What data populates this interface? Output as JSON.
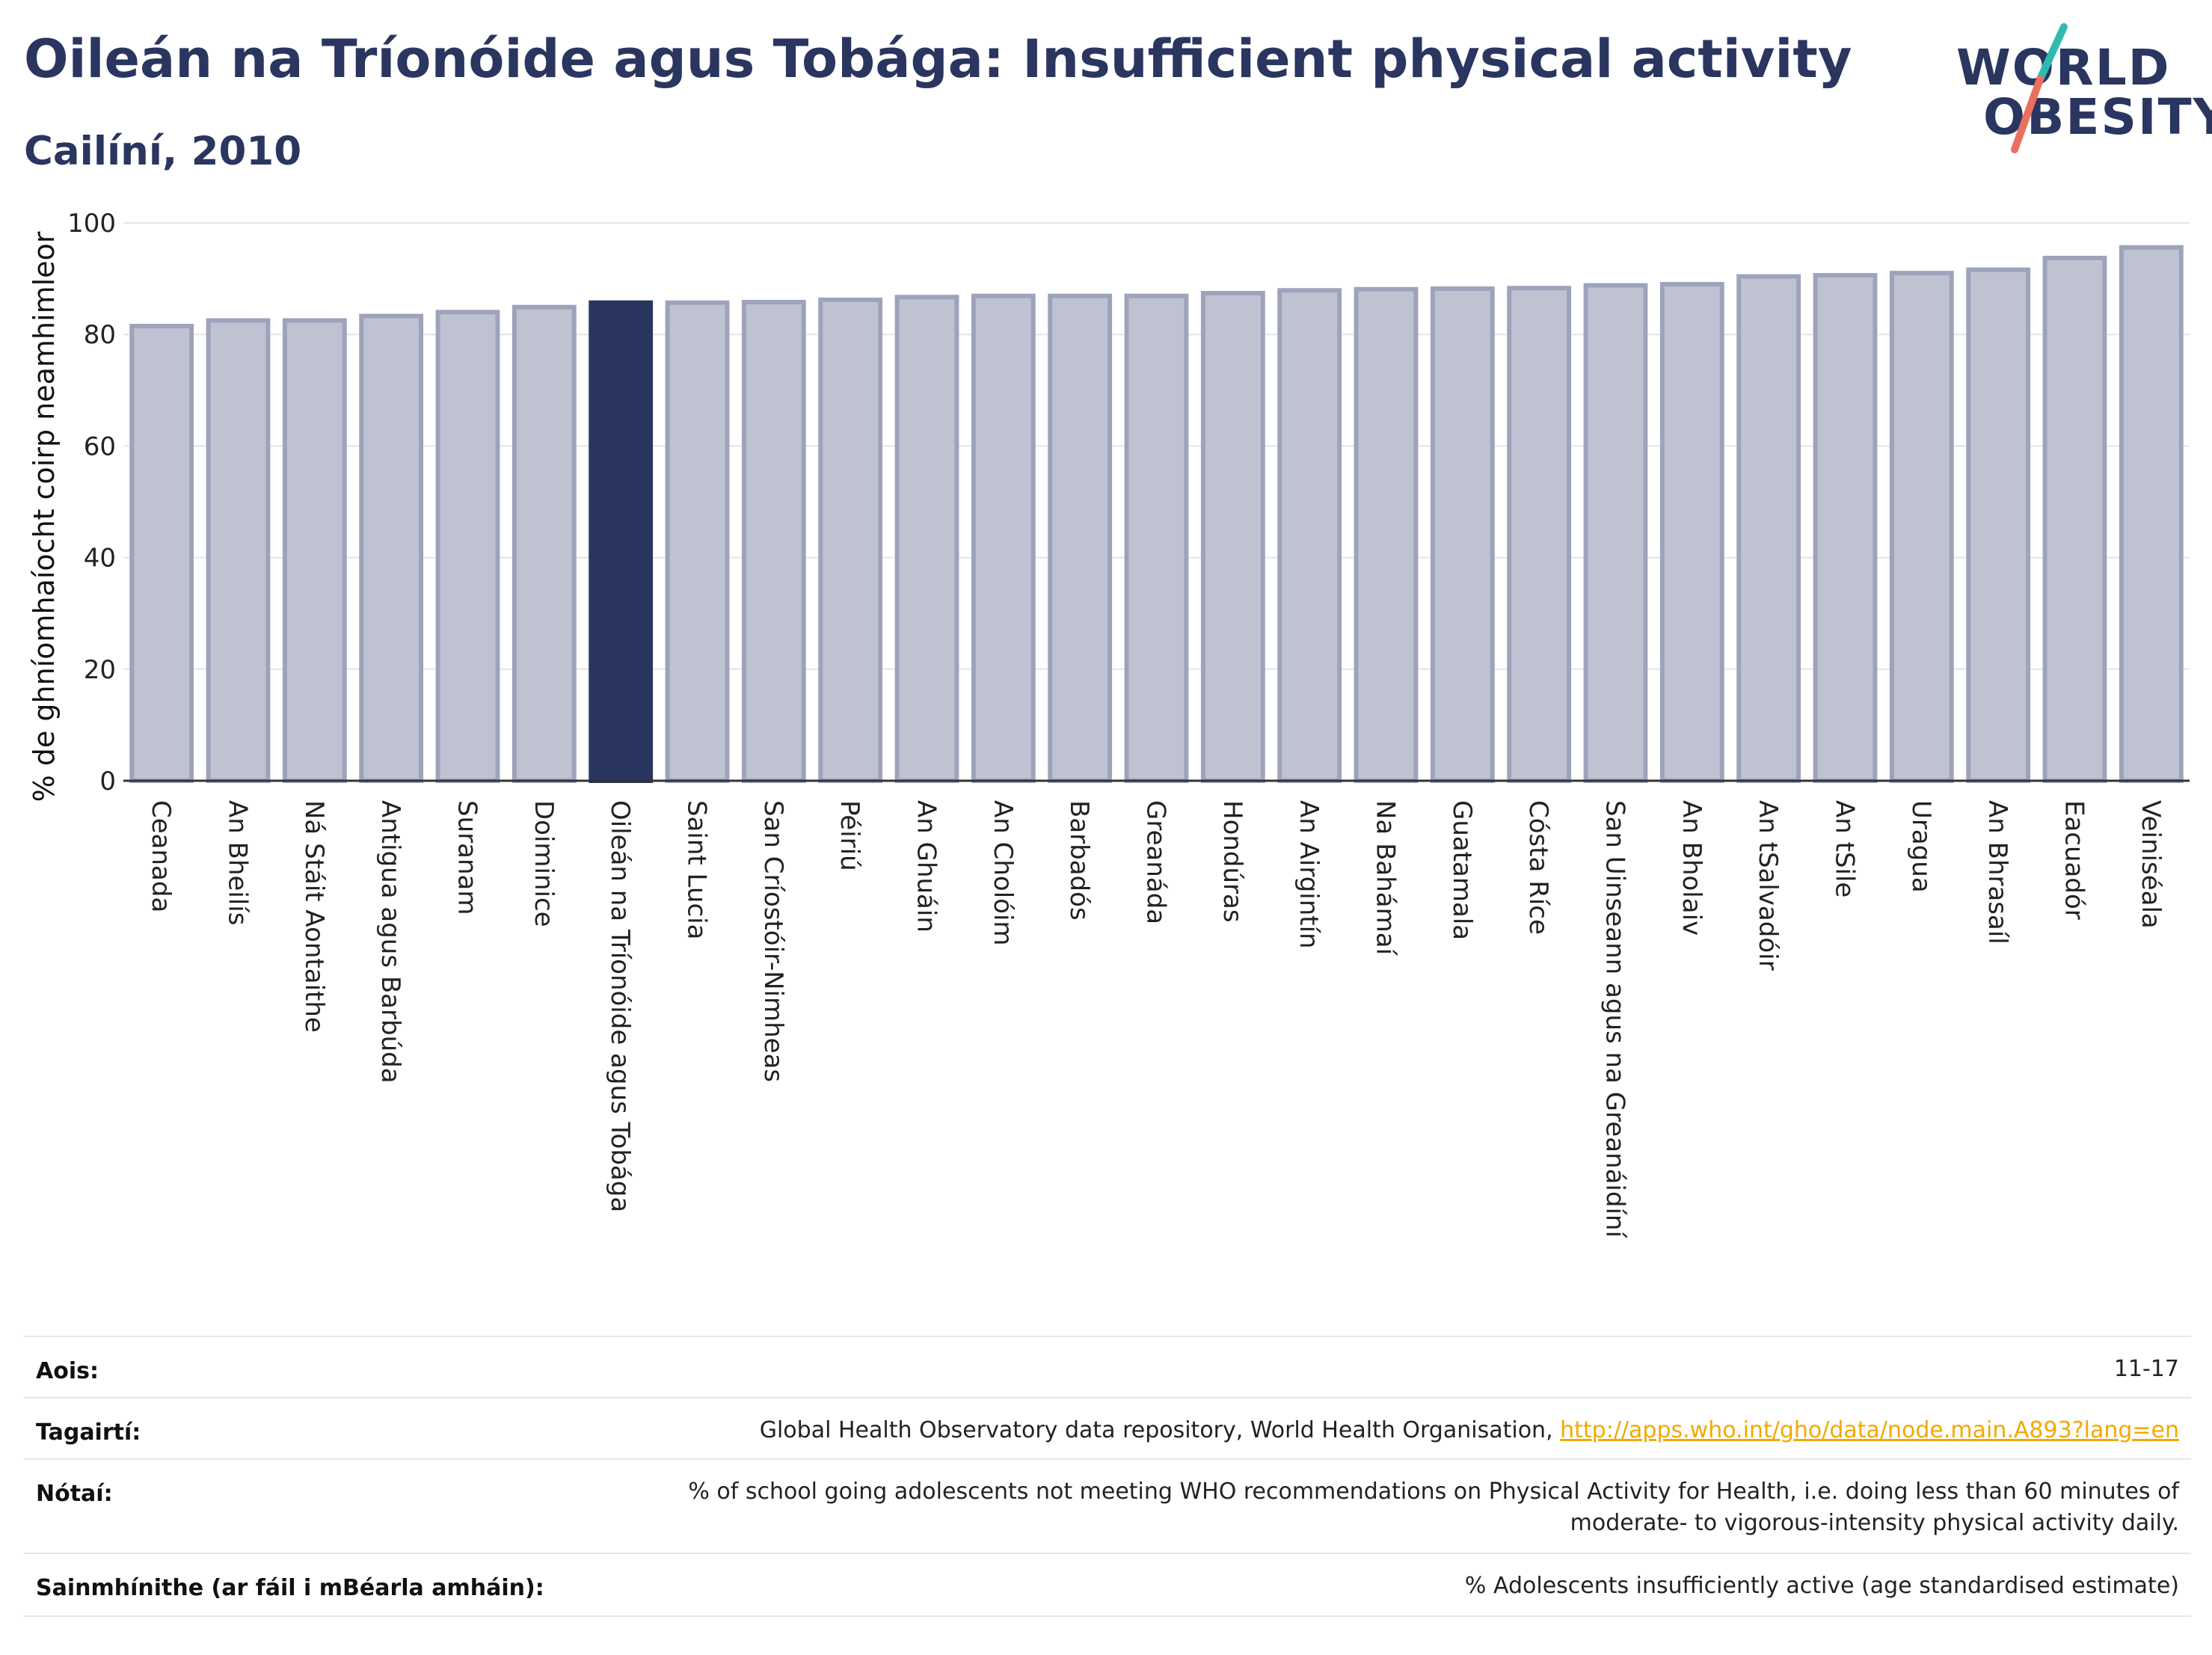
{
  "title": "Oileán na Tríonóide agus Tobága: Insufficient physical activity",
  "subtitle": "Cailíní, 2010",
  "logo": {
    "line1": "WORLD",
    "line2": "OBESITY"
  },
  "colors": {
    "bar": "#bfc2d1",
    "bar_stroke": "#9ea3bc",
    "highlight": "#2a3560",
    "title": "#2a3560",
    "link": "#f2a900"
  },
  "chart_data": {
    "type": "bar",
    "ylabel": "% de ghníomhaíocht coirp neamhimleor",
    "ylim": [
      0,
      100
    ],
    "yticks": [
      0,
      20,
      40,
      60,
      80,
      100
    ],
    "grid": true,
    "highlight": "Oileán na Tríonóide agus Tobága",
    "categories": [
      "Ceanada",
      "An Bheilís",
      "Ná Stáit Aontaithe",
      "Antigua agus Barbúda",
      "Suranam",
      "Doiminice",
      "Oileán na Tríonóide agus Tobága",
      "Saint Lucia",
      "San Críostóir-Nimheas",
      "Péiriú",
      "An Ghuáin",
      "An Cholóim",
      "Barbadós",
      "Greanáda",
      "Hondúras",
      "An Airgintín",
      "Na Bahámaí",
      "Guatamala",
      "Cósta Ríce",
      "San Uinseann agus na Greanáidíní",
      "An Bholaiv",
      "An tSalvadóir",
      "An tSile",
      "Uragua",
      "An Bhrasaíl",
      "Eacuadór",
      "Veiniséala"
    ],
    "values": [
      81.5,
      82.5,
      82.5,
      83.3,
      84.0,
      84.9,
      85.7,
      85.7,
      85.8,
      86.2,
      86.7,
      86.9,
      86.9,
      86.9,
      87.4,
      87.9,
      88.1,
      88.2,
      88.3,
      88.8,
      89.0,
      90.4,
      90.6,
      91.0,
      91.6,
      93.7,
      95.6
    ]
  },
  "info": {
    "age_label": "Aois:",
    "age_value": "11-17",
    "ref_label": "Tagairtí:",
    "ref_text": "Global Health Observatory data repository, World Health Organisation, ",
    "ref_link": "http://apps.who.int/gho/data/node.main.A893?lang=en",
    "notes_label": "Nótaí:",
    "notes_line1": "% of school going adolescents not meeting WHO recommendations on Physical Activity for Health, i.e. doing less than 60 minutes of",
    "notes_line2": "moderate- to vigorous-intensity physical activity daily.",
    "def_label": "Sainmhínithe (ar fáil i mBéarla amháin):",
    "def_value": "% Adolescents insufficiently active (age standardised estimate)"
  }
}
